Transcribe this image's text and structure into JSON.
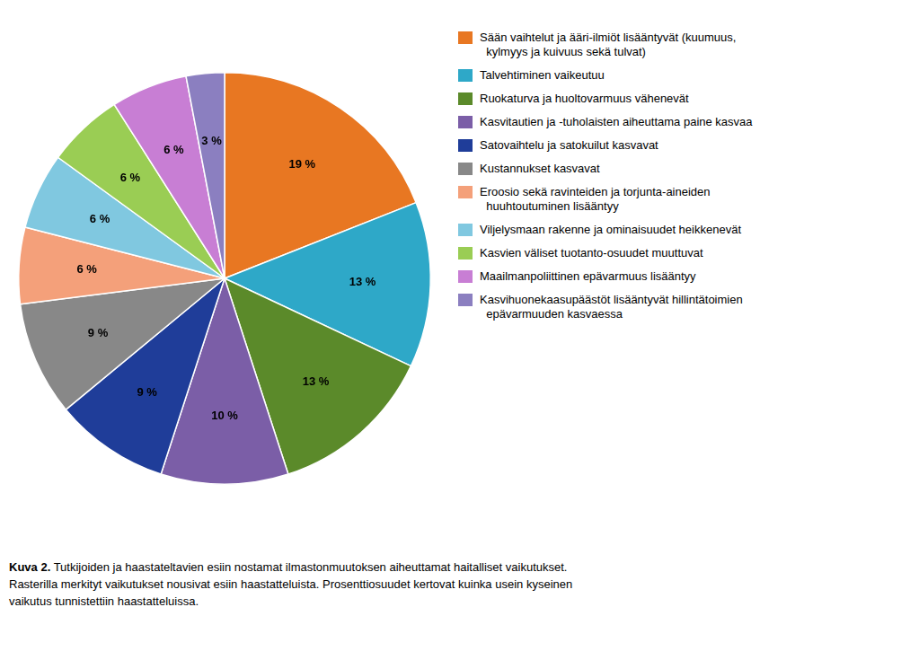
{
  "chart_data": {
    "type": "pie",
    "categories": [
      "Sään vaihtelut ja ääri-ilmiöt lisääntyvät (kuumuus,\n  kylmyys ja kuivuus sekä tulvat)",
      "Talvehtiminen vaikeutuu",
      "Ruokaturva ja huoltovarmuus vähenevät",
      "Kasvitautien ja -tuholaisten aiheuttama paine kasvaa",
      "Satovaihtelu ja satokuilut kasvavat",
      "Kustannukset kasvavat",
      "Eroosio sekä ravinteiden ja torjunta-aineiden\n  huuhtoutuminen lisääntyy",
      "Viljelysmaan rakenne ja ominaisuudet heikkenevät",
      "Kasvien väliset tuotanto-osuudet muuttuvat",
      "Maailmanpoliittinen epävarmuus lisääntyy",
      "Kasvihuonekaasupäästöt lisääntyvät hillintätoimien\n  epävarmuuden kasvaessa"
    ],
    "values": [
      19,
      13,
      13,
      10,
      9,
      9,
      6,
      6,
      6,
      6,
      3
    ],
    "value_labels": [
      "19 %",
      "13 %",
      "13 %",
      "10 %",
      "9 %",
      "9 %",
      "6 %",
      "6 %",
      "6 %",
      "6 %",
      "3 %"
    ],
    "colors": [
      "#E87722",
      "#2EA8C8",
      "#5B8A2A",
      "#7B5EA7",
      "#1F3D99",
      "#888888",
      "#F4A07A",
      "#80C8E0",
      "#9ACD54",
      "#C87ED4",
      "#8B7FC0"
    ],
    "data_labels": true,
    "legend": "right",
    "annotations": [
      "Kuva 2.",
      " Tutkijoiden ja haastateltavien esiin nostamat ilmastonmuutoksen aiheuttamat haitalliset vaikutukset.\nRasterilla merkityt vaikutukset nousivat esiin haastatteluista. Prosenttiosuudet kertovat kuinka usein kyseinen\nvaikutus tunnistettiin haastatteluissa."
    ]
  }
}
